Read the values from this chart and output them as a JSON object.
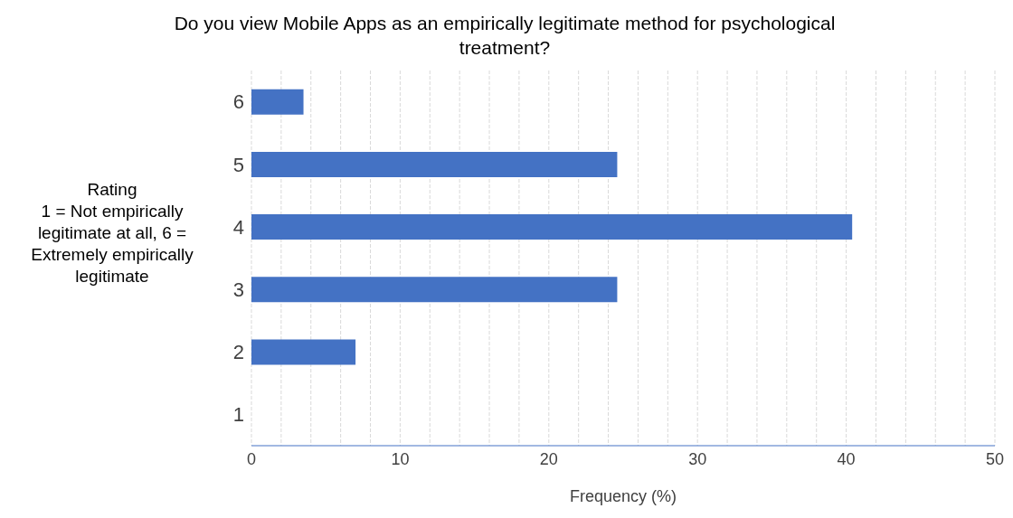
{
  "chart_data": {
    "type": "bar",
    "orientation": "horizontal",
    "title": "Do you view Mobile Apps as an empirically legitimate method for psychological treatment?",
    "xlabel": "Frequency (%)",
    "ylabel": "Rating\n1 = Not empirically legitimate at all, 6 = Extremely empirically legitimate",
    "categories": [
      "6",
      "5",
      "4",
      "3",
      "2",
      "1"
    ],
    "values": [
      3.5,
      24.6,
      40.4,
      24.6,
      7.0,
      0
    ],
    "color": "#4472c4",
    "xlim": [
      0,
      50
    ],
    "xticks": [
      0,
      {
        "value": 2,
        "label": null
      },
      {
        "value": 4,
        "label": null
      },
      {
        "value": 6,
        "label": null
      },
      {
        "value": 8,
        "label": null
      },
      10,
      {
        "value": 12,
        "label": null
      },
      {
        "value": 14,
        "label": null
      },
      {
        "value": 16,
        "label": null
      },
      {
        "value": 18,
        "label": null
      },
      20,
      {
        "value": 22,
        "label": null
      },
      {
        "value": 24,
        "label": null
      },
      {
        "value": 26,
        "label": null
      },
      {
        "value": 28,
        "label": null
      },
      30,
      {
        "value": 32,
        "label": null
      },
      {
        "value": 34,
        "label": null
      },
      {
        "value": 36,
        "label": null
      },
      {
        "value": 38,
        "label": null
      },
      40,
      {
        "value": 42,
        "label": null
      },
      {
        "value": 44,
        "label": null
      },
      {
        "value": 46,
        "label": null
      },
      {
        "value": 48,
        "label": null
      },
      50
    ],
    "grid": "x"
  }
}
